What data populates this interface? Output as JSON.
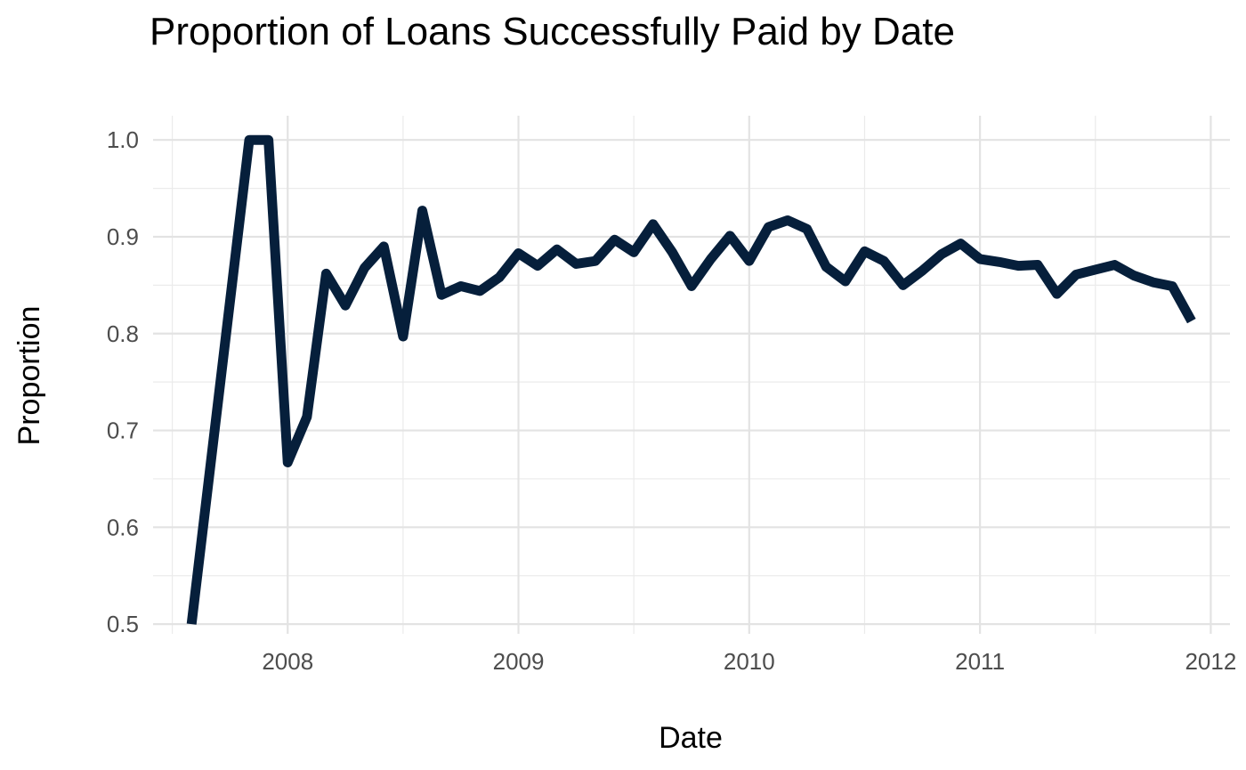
{
  "chart_data": {
    "type": "line",
    "title": "Proportion of Loans Successfully Paid by Date",
    "xlabel": "Date",
    "ylabel": "Proportion",
    "xlim": [
      "2007-06-01",
      "2012-02-01"
    ],
    "ylim": [
      0.49,
      1.025
    ],
    "x_ticks": [
      "2008",
      "2009",
      "2010",
      "2011",
      "2012"
    ],
    "y_ticks": [
      "0.5",
      "0.6",
      "0.7",
      "0.8",
      "0.9",
      "1.0"
    ],
    "grid": true,
    "line_color": "#061f3b",
    "series": [
      {
        "x": [
          "2007-08",
          "2007-11",
          "2007-12",
          "2008-01",
          "2008-02",
          "2008-03",
          "2008-04",
          "2008-05",
          "2008-06",
          "2008-07",
          "2008-08",
          "2008-09",
          "2008-10",
          "2008-11",
          "2008-12",
          "2009-01",
          "2009-02",
          "2009-03",
          "2009-04",
          "2009-05",
          "2009-06",
          "2009-07",
          "2009-08",
          "2009-09",
          "2009-10",
          "2009-11",
          "2009-12",
          "2010-01",
          "2010-02",
          "2010-03",
          "2010-04",
          "2010-05",
          "2010-06",
          "2010-07",
          "2010-08",
          "2010-09",
          "2010-10",
          "2010-11",
          "2010-12",
          "2011-01",
          "2011-02",
          "2011-03",
          "2011-04",
          "2011-05",
          "2011-06",
          "2011-07",
          "2011-08",
          "2011-09",
          "2011-10",
          "2011-11",
          "2011-12"
        ],
        "values": [
          0.5,
          1.0,
          1.0,
          0.667,
          0.714,
          0.862,
          0.829,
          0.868,
          0.89,
          0.797,
          0.927,
          0.84,
          0.849,
          0.844,
          0.858,
          0.883,
          0.87,
          0.887,
          0.872,
          0.875,
          0.897,
          0.884,
          0.913,
          0.884,
          0.849,
          0.877,
          0.901,
          0.875,
          0.91,
          0.917,
          0.908,
          0.869,
          0.854,
          0.885,
          0.875,
          0.85,
          0.865,
          0.882,
          0.893,
          0.877,
          0.874,
          0.87,
          0.871,
          0.841,
          0.861,
          0.866,
          0.871,
          0.86,
          0.853,
          0.849,
          0.813
        ]
      }
    ]
  }
}
